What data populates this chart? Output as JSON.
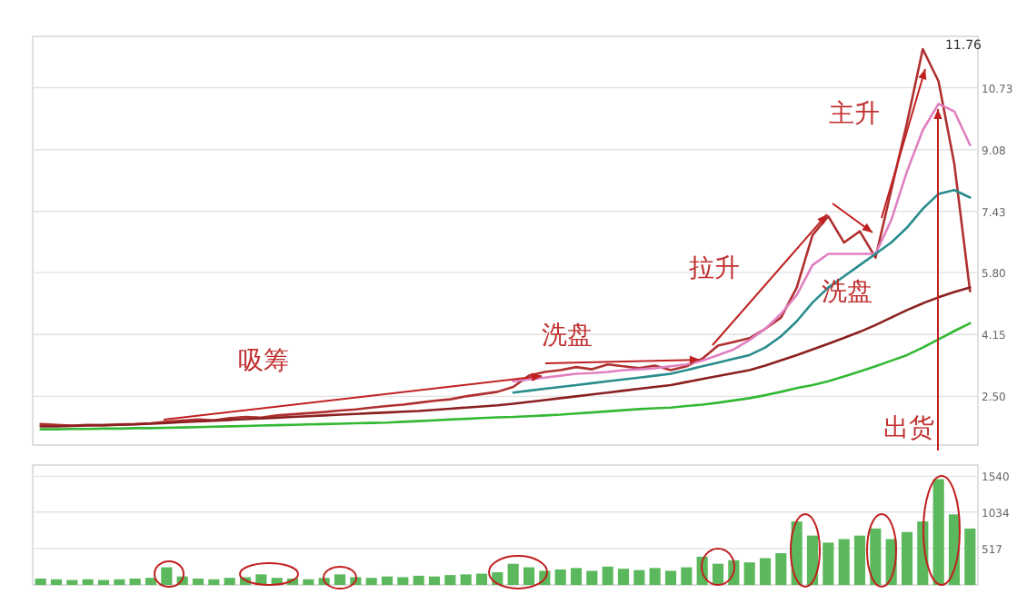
{
  "chart_data": [
    {
      "type": "line",
      "categories": [
        null,
        null,
        null,
        null,
        null,
        null,
        null,
        null,
        null,
        null,
        null,
        null,
        null,
        null,
        null,
        null,
        null,
        null,
        null,
        null,
        null,
        null,
        null,
        null,
        null,
        null,
        null,
        null,
        null,
        null,
        null,
        null,
        null,
        null,
        null,
        null,
        null,
        null,
        null,
        null,
        null,
        null,
        null,
        null,
        null,
        null,
        null,
        null,
        null,
        null,
        null,
        null,
        null,
        null,
        null,
        null,
        null,
        null,
        null,
        null
      ],
      "series": [
        {
          "color": "#b03030",
          "values": [
            1.76,
            1.74,
            1.72,
            1.74,
            1.73,
            1.75,
            1.76,
            1.78,
            1.82,
            1.85,
            1.88,
            1.86,
            1.92,
            1.95,
            1.93,
            1.99,
            2.02,
            2.05,
            2.08,
            2.12,
            2.15,
            2.2,
            2.24,
            2.28,
            2.33,
            2.38,
            2.42,
            2.5,
            2.56,
            2.62,
            2.75,
            3.05,
            3.15,
            3.2,
            3.28,
            3.22,
            3.35,
            3.3,
            3.25,
            3.32,
            3.2,
            3.3,
            3.5,
            3.85,
            3.95,
            4.05,
            4.3,
            4.6,
            5.4,
            6.8,
            7.3,
            6.6,
            6.9,
            6.2,
            8.0,
            9.8,
            11.76,
            10.9,
            8.7,
            5.3
          ]
        },
        {
          "color": "#e080c0",
          "values": [
            null,
            null,
            null,
            null,
            null,
            null,
            null,
            null,
            null,
            null,
            null,
            null,
            null,
            null,
            null,
            null,
            null,
            null,
            null,
            null,
            null,
            null,
            null,
            null,
            null,
            null,
            null,
            null,
            null,
            null,
            2.9,
            2.95,
            3.0,
            3.05,
            3.1,
            3.12,
            3.15,
            3.2,
            3.22,
            3.25,
            3.3,
            3.35,
            3.45,
            3.6,
            3.75,
            4.0,
            4.3,
            4.7,
            5.2,
            6.0,
            6.3,
            6.3,
            6.3,
            6.3,
            7.2,
            8.5,
            9.6,
            10.3,
            10.1,
            9.2
          ]
        },
        {
          "color": "#2a8c8c",
          "values": [
            null,
            null,
            null,
            null,
            null,
            null,
            null,
            null,
            null,
            null,
            null,
            null,
            null,
            null,
            null,
            null,
            null,
            null,
            null,
            null,
            null,
            null,
            null,
            null,
            null,
            null,
            null,
            null,
            null,
            null,
            2.6,
            2.65,
            2.7,
            2.75,
            2.8,
            2.85,
            2.9,
            2.95,
            3.0,
            3.05,
            3.1,
            3.2,
            3.3,
            3.4,
            3.5,
            3.6,
            3.8,
            4.1,
            4.5,
            5.0,
            5.4,
            5.7,
            6.0,
            6.3,
            6.6,
            7.0,
            7.5,
            7.9,
            8.0,
            7.8
          ]
        },
        {
          "color": "#8b2020",
          "values": [
            1.7,
            1.7,
            1.71,
            1.72,
            1.73,
            1.74,
            1.75,
            1.77,
            1.79,
            1.81,
            1.83,
            1.85,
            1.87,
            1.89,
            1.91,
            1.93,
            1.95,
            1.97,
            1.99,
            2.01,
            2.03,
            2.05,
            2.07,
            2.09,
            2.11,
            2.14,
            2.17,
            2.2,
            2.23,
            2.26,
            2.3,
            2.35,
            2.4,
            2.45,
            2.5,
            2.55,
            2.6,
            2.65,
            2.7,
            2.75,
            2.8,
            2.88,
            2.96,
            3.04,
            3.12,
            3.2,
            3.32,
            3.46,
            3.6,
            3.75,
            3.9,
            4.06,
            4.22,
            4.4,
            4.6,
            4.8,
            4.98,
            5.14,
            5.28,
            5.4
          ]
        },
        {
          "color": "#33b833",
          "values": [
            1.62,
            1.62,
            1.63,
            1.63,
            1.64,
            1.64,
            1.65,
            1.65,
            1.66,
            1.67,
            1.68,
            1.69,
            1.7,
            1.71,
            1.72,
            1.73,
            1.74,
            1.75,
            1.76,
            1.77,
            1.78,
            1.79,
            1.8,
            1.82,
            1.84,
            1.86,
            1.88,
            1.9,
            1.92,
            1.94,
            1.95,
            1.97,
            1.99,
            2.01,
            2.04,
            2.07,
            2.1,
            2.13,
            2.16,
            2.18,
            2.2,
            2.24,
            2.28,
            2.33,
            2.39,
            2.45,
            2.53,
            2.62,
            2.72,
            2.8,
            2.9,
            3.03,
            3.16,
            3.3,
            3.45,
            3.6,
            3.8,
            4.02,
            4.24,
            4.45
          ]
        }
      ],
      "ylim": [
        1.2,
        12.1
      ],
      "yticks": [
        {
          "value": 2.5,
          "label": "2.50"
        },
        4.15,
        {
          "value": 5.8,
          "label": "5.80"
        },
        7.43,
        9.08,
        10.73
      ],
      "grid": "y",
      "annotations": [
        "吸筹",
        "洗盘",
        "拉升",
        "主升",
        "洗盘",
        "出货",
        "11.76"
      ]
    },
    {
      "type": "bar",
      "color": "#5cb85c",
      "categories": [
        null,
        null,
        null,
        null,
        null,
        null,
        null,
        null,
        null,
        null,
        null,
        null,
        null,
        null,
        null,
        null,
        null,
        null,
        null,
        null,
        null,
        null,
        null,
        null,
        null,
        null,
        null,
        null,
        null,
        null,
        null,
        null,
        null,
        null,
        null,
        null,
        null,
        null,
        null,
        null,
        null,
        null,
        null,
        null,
        null,
        null,
        null,
        null,
        null,
        null,
        null,
        null,
        null,
        null,
        null,
        null,
        null,
        null,
        null,
        null
      ],
      "values": [
        90,
        80,
        70,
        80,
        70,
        80,
        90,
        100,
        250,
        120,
        90,
        80,
        100,
        110,
        150,
        100,
        90,
        80,
        100,
        150,
        110,
        100,
        120,
        110,
        130,
        120,
        140,
        150,
        160,
        180,
        300,
        250,
        200,
        220,
        240,
        200,
        260,
        230,
        210,
        240,
        200,
        250,
        400,
        300,
        350,
        320,
        380,
        450,
        900,
        700,
        600,
        650,
        700,
        800,
        650,
        750,
        900,
        1500,
        1000,
        800
      ],
      "ylim": [
        0,
        1700
      ],
      "yticks": [
        517,
        1034,
        1540
      ],
      "grid": "y"
    }
  ]
}
